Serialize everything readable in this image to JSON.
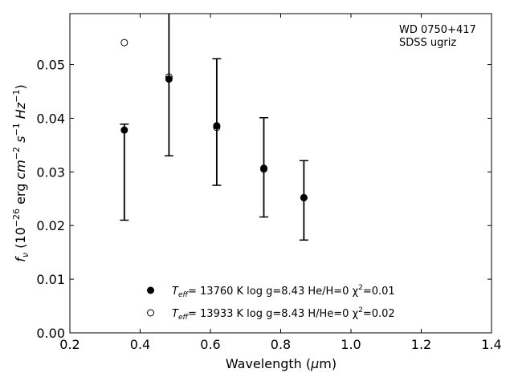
{
  "chart_data": {
    "type": "scatter",
    "xlabel": "Wavelength (μm)",
    "ylabel": "f_ν (10^-26 erg cm^-2 s^-1 Hz^-1)",
    "xlim": [
      0.2,
      1.4
    ],
    "ylim": [
      0.0,
      0.0595
    ],
    "xticks": [
      "0.2",
      "0.4",
      "0.6",
      "0.8",
      "1.0",
      "1.2",
      "1.4"
    ],
    "yticks": [
      "0.00",
      "0.01",
      "0.02",
      "0.03",
      "0.04",
      "0.05"
    ],
    "annotation": [
      "WD 0750+417",
      "SDSS ugriz"
    ],
    "grid": false,
    "legend_position": "bottom-center",
    "observed": {
      "x": [
        0.355,
        0.482,
        0.618,
        0.752,
        0.866
      ],
      "y": [
        0.0378,
        0.0474,
        0.0386,
        0.0307,
        0.0252
      ],
      "err_low": [
        0.0168,
        0.0144,
        0.0111,
        0.0091,
        0.0079
      ],
      "err_high": [
        0.0011,
        0.015,
        0.0125,
        0.0094,
        0.0069
      ]
    },
    "series": [
      {
        "marker": "filled-circle",
        "label_parts": [
          "T",
          "eff",
          "= 13760 K  log g=8.43  He/H=0  χ",
          "2",
          "=0.01"
        ],
        "x": [
          0.355,
          0.482,
          0.618,
          0.752,
          0.866
        ],
        "y": [
          0.0378,
          0.0473,
          0.0386,
          0.0307,
          0.0252
        ]
      },
      {
        "marker": "open-circle",
        "label_parts": [
          "T",
          "eff",
          "= 13933 K  log g=8.43  H/He=0  χ",
          "2",
          "=0.02"
        ],
        "x": [
          0.355,
          0.482,
          0.618,
          0.752,
          0.866
        ],
        "y": [
          0.0541,
          0.0477,
          0.0383,
          0.0305,
          0.0252
        ]
      }
    ]
  }
}
